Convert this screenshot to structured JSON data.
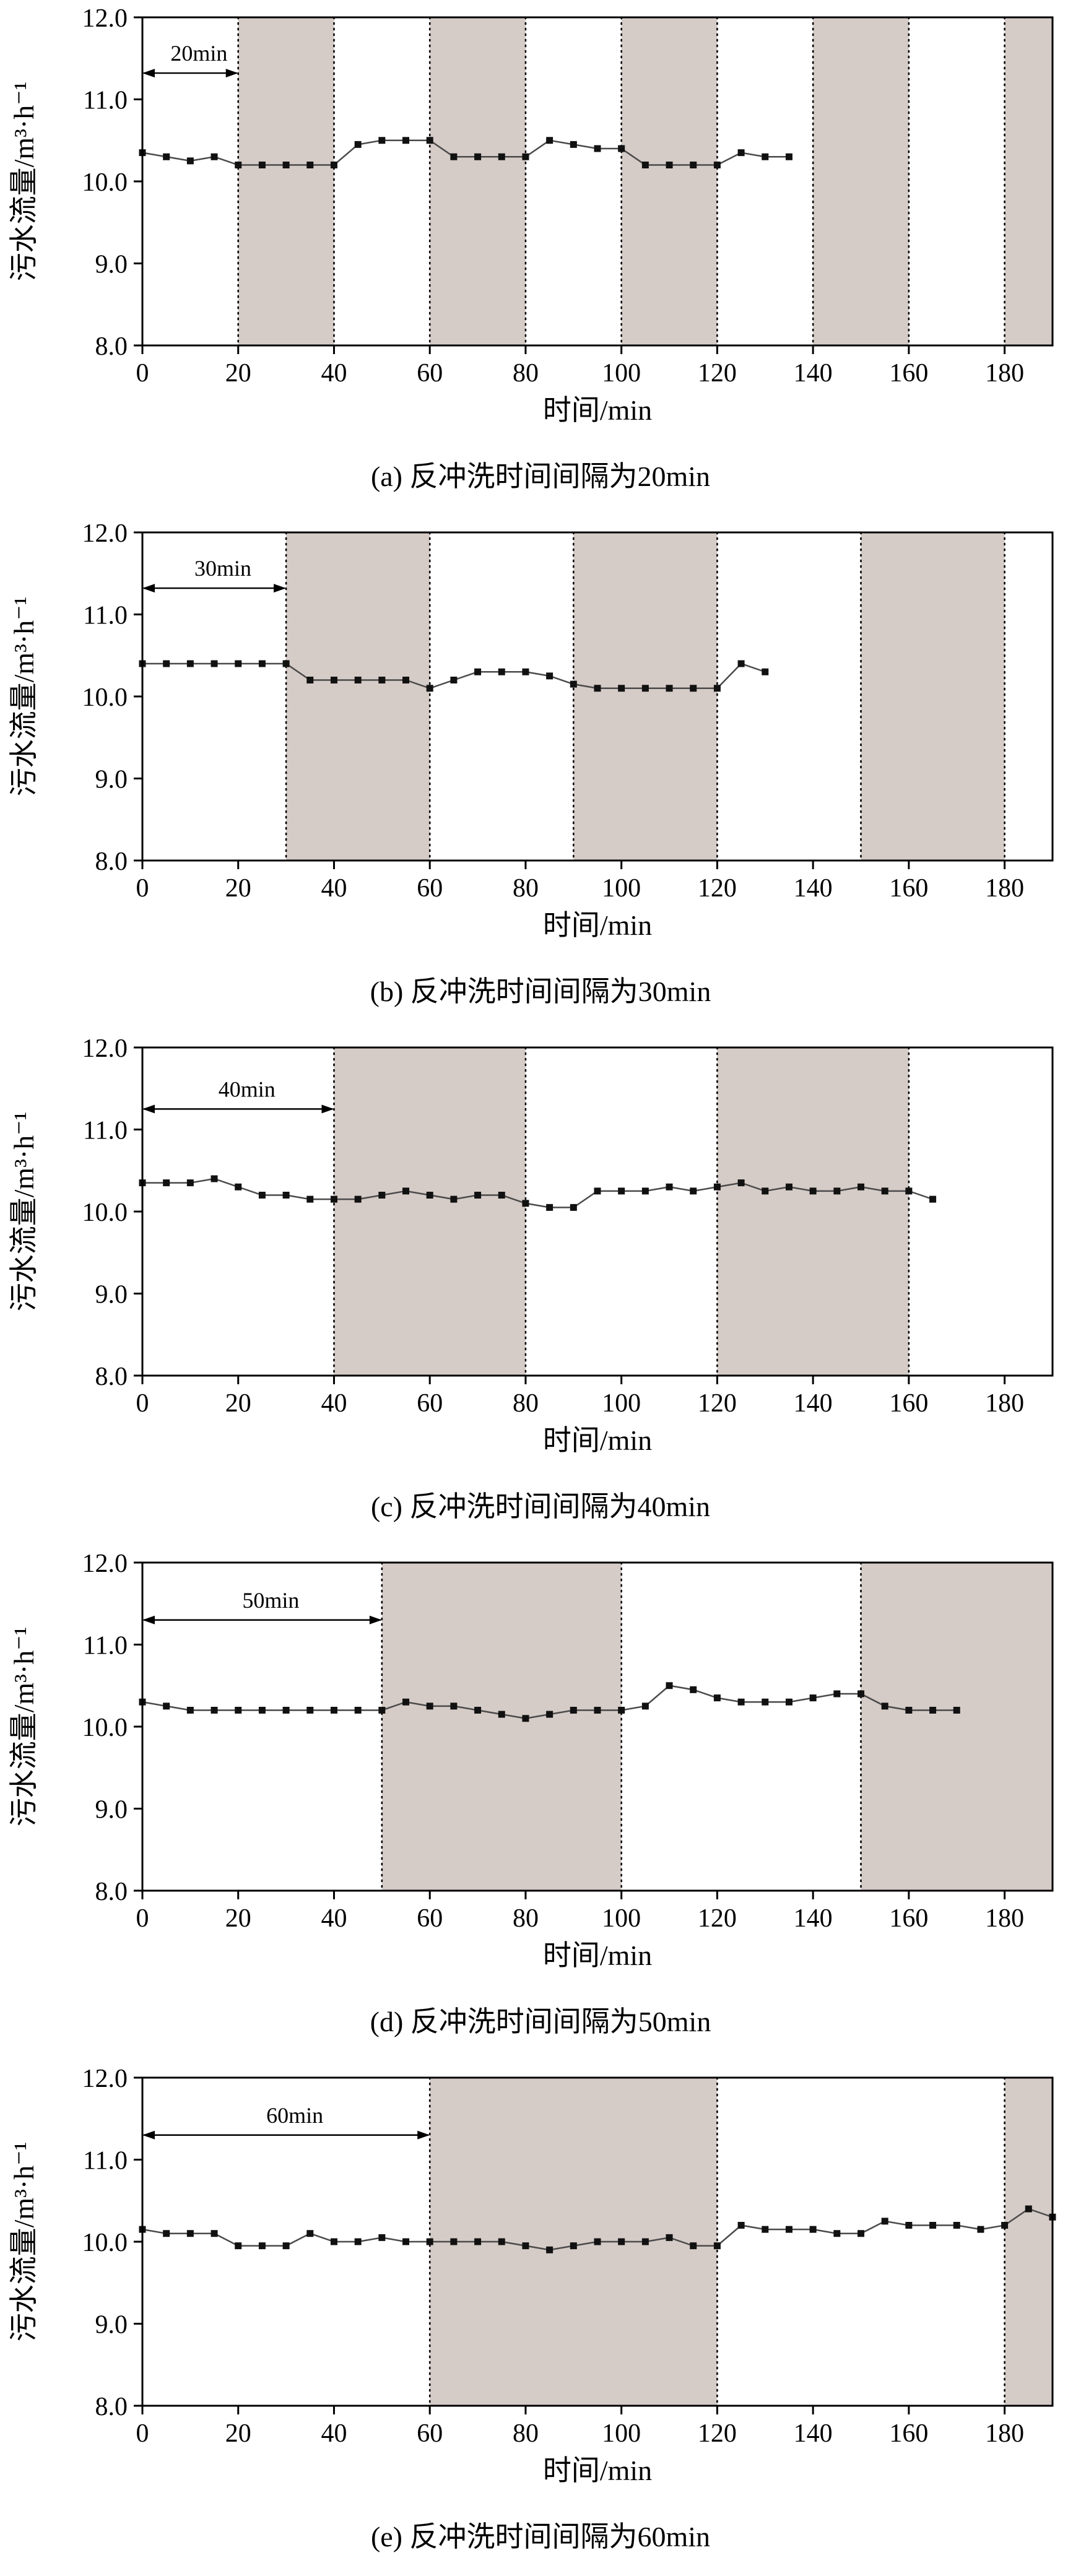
{
  "figure_title": "",
  "chart_data": [
    {
      "type": "line",
      "caption": "(a) 反冲洗时间间隔为20min",
      "xlabel": "时间/min",
      "ylabel": "污水流量/m³·h⁻¹",
      "xlim": [
        0,
        190
      ],
      "ylim": [
        8.0,
        12.0
      ],
      "xticks": [
        0,
        20,
        40,
        60,
        80,
        100,
        120,
        140,
        160,
        180
      ],
      "yticks": [
        8.0,
        9.0,
        10.0,
        11.0,
        12.0
      ],
      "bands": [
        [
          20,
          40
        ],
        [
          60,
          80
        ],
        [
          100,
          120
        ],
        [
          140,
          160
        ],
        [
          180,
          190
        ]
      ],
      "annotation": {
        "label": "20min",
        "from": 0,
        "to": 20,
        "y": 11.32
      },
      "colors": {
        "band": "#d5cbc7",
        "axis": "#000000",
        "line": "#4a4a4a",
        "marker": "#111111"
      },
      "points": [
        [
          0,
          10.35
        ],
        [
          5,
          10.3
        ],
        [
          10,
          10.25
        ],
        [
          15,
          10.3
        ],
        [
          20,
          10.2
        ],
        [
          25,
          10.2
        ],
        [
          30,
          10.2
        ],
        [
          35,
          10.2
        ],
        [
          40,
          10.2
        ],
        [
          45,
          10.45
        ],
        [
          50,
          10.5
        ],
        [
          55,
          10.5
        ],
        [
          60,
          10.5
        ],
        [
          65,
          10.3
        ],
        [
          70,
          10.3
        ],
        [
          75,
          10.3
        ],
        [
          80,
          10.3
        ],
        [
          85,
          10.5
        ],
        [
          90,
          10.45
        ],
        [
          95,
          10.4
        ],
        [
          100,
          10.4
        ],
        [
          105,
          10.2
        ],
        [
          110,
          10.2
        ],
        [
          115,
          10.2
        ],
        [
          120,
          10.2
        ],
        [
          125,
          10.35
        ],
        [
          130,
          10.3
        ],
        [
          135,
          10.3
        ]
      ]
    },
    {
      "type": "line",
      "caption": "(b) 反冲洗时间间隔为30min",
      "xlabel": "时间/min",
      "ylabel": "污水流量/m³·h⁻¹",
      "xlim": [
        0,
        190
      ],
      "ylim": [
        8.0,
        12.0
      ],
      "xticks": [
        0,
        20,
        40,
        60,
        80,
        100,
        120,
        140,
        160,
        180
      ],
      "yticks": [
        8.0,
        9.0,
        10.0,
        11.0,
        12.0
      ],
      "bands": [
        [
          30,
          60
        ],
        [
          90,
          120
        ],
        [
          150,
          180
        ]
      ],
      "annotation": {
        "label": "30min",
        "from": 0,
        "to": 30,
        "y": 11.32
      },
      "colors": {
        "band": "#d5cbc7",
        "axis": "#000000",
        "line": "#4a4a4a",
        "marker": "#111111"
      },
      "points": [
        [
          0,
          10.4
        ],
        [
          5,
          10.4
        ],
        [
          10,
          10.4
        ],
        [
          15,
          10.4
        ],
        [
          20,
          10.4
        ],
        [
          25,
          10.4
        ],
        [
          30,
          10.4
        ],
        [
          35,
          10.2
        ],
        [
          40,
          10.2
        ],
        [
          45,
          10.2
        ],
        [
          50,
          10.2
        ],
        [
          55,
          10.2
        ],
        [
          60,
          10.1
        ],
        [
          65,
          10.2
        ],
        [
          70,
          10.3
        ],
        [
          75,
          10.3
        ],
        [
          80,
          10.3
        ],
        [
          85,
          10.25
        ],
        [
          90,
          10.15
        ],
        [
          95,
          10.1
        ],
        [
          100,
          10.1
        ],
        [
          105,
          10.1
        ],
        [
          110,
          10.1
        ],
        [
          115,
          10.1
        ],
        [
          120,
          10.1
        ],
        [
          125,
          10.4
        ],
        [
          130,
          10.3
        ]
      ]
    },
    {
      "type": "line",
      "caption": "(c) 反冲洗时间间隔为40min",
      "xlabel": "时间/min",
      "ylabel": "污水流量/m³·h⁻¹",
      "xlim": [
        0,
        190
      ],
      "ylim": [
        8.0,
        12.0
      ],
      "xticks": [
        0,
        20,
        40,
        60,
        80,
        100,
        120,
        140,
        160,
        180
      ],
      "yticks": [
        8.0,
        9.0,
        10.0,
        11.0,
        12.0
      ],
      "bands": [
        [
          40,
          80
        ],
        [
          120,
          160
        ]
      ],
      "annotation": {
        "label": "40min",
        "from": 0,
        "to": 40,
        "y": 11.25
      },
      "colors": {
        "band": "#d5cbc7",
        "axis": "#000000",
        "line": "#4a4a4a",
        "marker": "#111111"
      },
      "points": [
        [
          0,
          10.35
        ],
        [
          5,
          10.35
        ],
        [
          10,
          10.35
        ],
        [
          15,
          10.4
        ],
        [
          20,
          10.3
        ],
        [
          25,
          10.2
        ],
        [
          30,
          10.2
        ],
        [
          35,
          10.15
        ],
        [
          40,
          10.15
        ],
        [
          45,
          10.15
        ],
        [
          50,
          10.2
        ],
        [
          55,
          10.25
        ],
        [
          60,
          10.2
        ],
        [
          65,
          10.15
        ],
        [
          70,
          10.2
        ],
        [
          75,
          10.2
        ],
        [
          80,
          10.1
        ],
        [
          85,
          10.05
        ],
        [
          90,
          10.05
        ],
        [
          95,
          10.25
        ],
        [
          100,
          10.25
        ],
        [
          105,
          10.25
        ],
        [
          110,
          10.3
        ],
        [
          115,
          10.25
        ],
        [
          120,
          10.3
        ],
        [
          125,
          10.35
        ],
        [
          130,
          10.25
        ],
        [
          135,
          10.3
        ],
        [
          140,
          10.25
        ],
        [
          145,
          10.25
        ],
        [
          150,
          10.3
        ],
        [
          155,
          10.25
        ],
        [
          160,
          10.25
        ],
        [
          165,
          10.15
        ]
      ]
    },
    {
      "type": "line",
      "caption": "(d) 反冲洗时间间隔为50min",
      "xlabel": "时间/min",
      "ylabel": "污水流量/m³·h⁻¹",
      "xlim": [
        0,
        190
      ],
      "ylim": [
        8.0,
        12.0
      ],
      "xticks": [
        0,
        20,
        40,
        60,
        80,
        100,
        120,
        140,
        160,
        180
      ],
      "yticks": [
        8.0,
        9.0,
        10.0,
        11.0,
        12.0
      ],
      "bands": [
        [
          50,
          100
        ],
        [
          150,
          190
        ]
      ],
      "annotation": {
        "label": "50min",
        "from": 0,
        "to": 50,
        "y": 11.3
      },
      "colors": {
        "band": "#d5cbc7",
        "axis": "#000000",
        "line": "#4a4a4a",
        "marker": "#111111"
      },
      "points": [
        [
          0,
          10.3
        ],
        [
          5,
          10.25
        ],
        [
          10,
          10.2
        ],
        [
          15,
          10.2
        ],
        [
          20,
          10.2
        ],
        [
          25,
          10.2
        ],
        [
          30,
          10.2
        ],
        [
          35,
          10.2
        ],
        [
          40,
          10.2
        ],
        [
          45,
          10.2
        ],
        [
          50,
          10.2
        ],
        [
          55,
          10.3
        ],
        [
          60,
          10.25
        ],
        [
          65,
          10.25
        ],
        [
          70,
          10.2
        ],
        [
          75,
          10.15
        ],
        [
          80,
          10.1
        ],
        [
          85,
          10.15
        ],
        [
          90,
          10.2
        ],
        [
          95,
          10.2
        ],
        [
          100,
          10.2
        ],
        [
          105,
          10.25
        ],
        [
          110,
          10.5
        ],
        [
          115,
          10.45
        ],
        [
          120,
          10.35
        ],
        [
          125,
          10.3
        ],
        [
          130,
          10.3
        ],
        [
          135,
          10.3
        ],
        [
          140,
          10.35
        ],
        [
          145,
          10.4
        ],
        [
          150,
          10.4
        ],
        [
          155,
          10.25
        ],
        [
          160,
          10.2
        ],
        [
          165,
          10.2
        ],
        [
          170,
          10.2
        ]
      ]
    },
    {
      "type": "line",
      "caption": "(e) 反冲洗时间间隔为60min",
      "xlabel": "时间/min",
      "ylabel": "污水流量/m³·h⁻¹",
      "xlim": [
        0,
        190
      ],
      "ylim": [
        8.0,
        12.0
      ],
      "xticks": [
        0,
        20,
        40,
        60,
        80,
        100,
        120,
        140,
        160,
        180
      ],
      "yticks": [
        8.0,
        9.0,
        10.0,
        11.0,
        12.0
      ],
      "bands": [
        [
          60,
          120
        ],
        [
          180,
          190
        ]
      ],
      "annotation": {
        "label": "60min",
        "from": 0,
        "to": 60,
        "y": 11.3
      },
      "colors": {
        "band": "#d5cbc7",
        "axis": "#000000",
        "line": "#4a4a4a",
        "marker": "#111111"
      },
      "points": [
        [
          0,
          10.15
        ],
        [
          5,
          10.1
        ],
        [
          10,
          10.1
        ],
        [
          15,
          10.1
        ],
        [
          20,
          9.95
        ],
        [
          25,
          9.95
        ],
        [
          30,
          9.95
        ],
        [
          35,
          10.1
        ],
        [
          40,
          10.0
        ],
        [
          45,
          10.0
        ],
        [
          50,
          10.05
        ],
        [
          55,
          10.0
        ],
        [
          60,
          10.0
        ],
        [
          65,
          10.0
        ],
        [
          70,
          10.0
        ],
        [
          75,
          10.0
        ],
        [
          80,
          9.95
        ],
        [
          85,
          9.9
        ],
        [
          90,
          9.95
        ],
        [
          95,
          10.0
        ],
        [
          100,
          10.0
        ],
        [
          105,
          10.0
        ],
        [
          110,
          10.05
        ],
        [
          115,
          9.95
        ],
        [
          120,
          9.95
        ],
        [
          125,
          10.2
        ],
        [
          130,
          10.15
        ],
        [
          135,
          10.15
        ],
        [
          140,
          10.15
        ],
        [
          145,
          10.1
        ],
        [
          150,
          10.1
        ],
        [
          155,
          10.25
        ],
        [
          160,
          10.2
        ],
        [
          165,
          10.2
        ],
        [
          170,
          10.2
        ],
        [
          175,
          10.15
        ],
        [
          180,
          10.2
        ],
        [
          185,
          10.4
        ],
        [
          190,
          10.3
        ]
      ]
    }
  ]
}
